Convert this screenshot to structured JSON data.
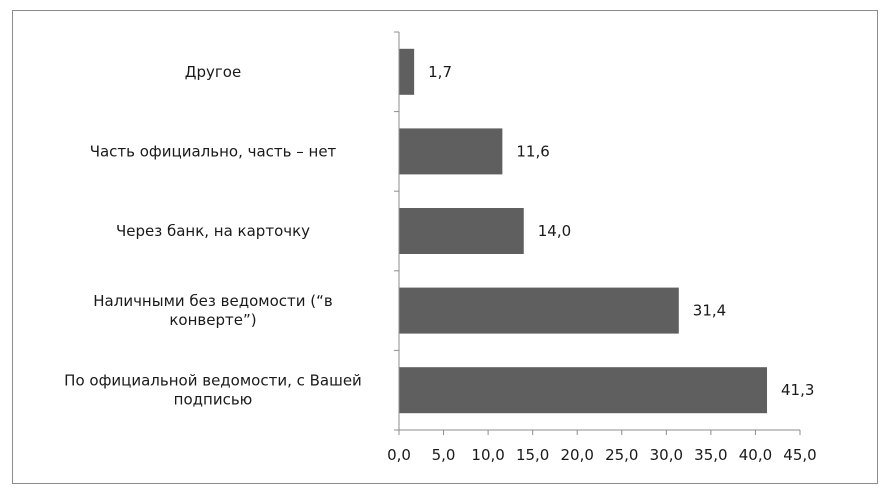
{
  "chart_data": {
    "type": "bar",
    "orientation": "horizontal",
    "categories": [
      [
        "По официальной ведомости, с Вашей",
        "подписью"
      ],
      [
        "Наличными без ведомости (“в",
        "конверте”)"
      ],
      [
        "Через банк, на карточку"
      ],
      [
        "Часть официально, часть – нет"
      ],
      [
        "Другое"
      ]
    ],
    "values": [
      41.3,
      31.4,
      14.0,
      11.6,
      1.7
    ],
    "value_labels": [
      "41,3",
      "31,4",
      "14,0",
      "11,6",
      "1,7"
    ],
    "xlim": [
      0,
      45
    ],
    "xticks": [
      0,
      5,
      10,
      15,
      20,
      25,
      30,
      35,
      40,
      45
    ],
    "xtick_labels": [
      "0,0",
      "5,0",
      "10,0",
      "15,0",
      "20,0",
      "25,0",
      "30,0",
      "35,0",
      "40,0",
      "45,0"
    ],
    "bar_color": "#5f5f5f",
    "axis_color": "#8c8c8c",
    "grid": false,
    "legend": "none"
  }
}
